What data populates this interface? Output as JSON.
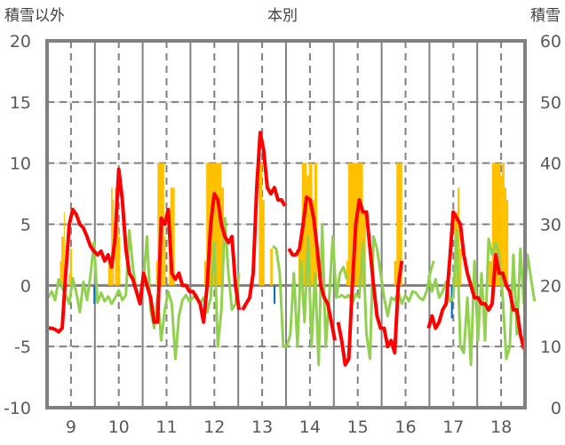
{
  "chart_data": {
    "type": "line",
    "title": "本別",
    "ylabel_left": "積雪以外",
    "ylabel_right": "積雪",
    "xlim": [
      8.5,
      18.5
    ],
    "ylim_left": [
      -10,
      20
    ],
    "ylim_right": [
      0,
      60
    ],
    "x_ticks": [
      9,
      10,
      11,
      12,
      13,
      14,
      15,
      16,
      17,
      18
    ],
    "x_tick_labels": [
      "9",
      "10",
      "11",
      "12",
      "13",
      "14",
      "15",
      "16",
      "17",
      "18"
    ],
    "left_ticks": [
      20,
      15,
      10,
      5,
      0,
      -5,
      -10
    ],
    "left_tick_labels": [
      "20",
      "15",
      "10",
      "5",
      "0",
      "-5",
      "-10"
    ],
    "right_ticks": [
      60,
      50,
      40,
      30,
      20,
      10,
      0
    ],
    "right_tick_labels": [
      "60",
      "50",
      "40",
      "30",
      "20",
      "10",
      "0"
    ],
    "grid": true,
    "legend": "none",
    "colors": {
      "red": "#ff0000",
      "green": "#92d050",
      "snow": "#ffc000",
      "blue": "#0070c0",
      "purple": "#7030a0",
      "axis": "#808080"
    },
    "series": [
      {
        "name": "red-line",
        "axis": "left",
        "color": "#ff0000",
        "segments": [
          {
            "start": 8.52,
            "step": 0.074,
            "values": [
              -3.5,
              -3.5,
              -3.6,
              -3.8,
              -3.5,
              1,
              5,
              6.2,
              5.8,
              5,
              4.7,
              4,
              3.2,
              2.8,
              2.5,
              2.8,
              2,
              2.5,
              1.5,
              4,
              9.5,
              7,
              3,
              1,
              0.5,
              -0.5,
              -1.5,
              1,
              0,
              -1,
              -3,
              -3,
              5.5,
              5,
              6.2,
              1,
              0.5,
              1,
              0,
              0,
              -0.5,
              -0.5,
              -1,
              -1.5,
              -3,
              0,
              5,
              7.5,
              7,
              5,
              4,
              3.5,
              4,
              0,
              -2
            ]
          },
          {
            "start": 12.59,
            "step": 0.074,
            "values": [
              -2,
              -1.5,
              -1,
              1,
              8,
              12.5,
              11,
              8,
              7.5,
              8,
              7,
              7,
              6.5
            ]
          },
          {
            "start": 13.56,
            "step": 0.074,
            "values": [
              3,
              2.5,
              2.5,
              3,
              5,
              7.2,
              7,
              5.5,
              3,
              0,
              -1,
              -1.5,
              -3,
              -4.5
            ]
          },
          {
            "start": 14.59,
            "step": 0.074,
            "values": [
              -3,
              -4.5,
              -6.5,
              -6,
              0,
              5,
              7,
              6,
              6,
              3,
              0,
              -2.5,
              -3.5,
              -3.5,
              -5,
              -4.5,
              -5.5,
              0,
              2
            ]
          },
          {
            "start": 16.48,
            "step": 0.074,
            "values": [
              -3.5,
              -2.5,
              -3.5,
              -3,
              -2,
              -1.5,
              2,
              6,
              5.5,
              5,
              2.5,
              1,
              0,
              -1,
              -1,
              -1.5,
              -1.5,
              -2,
              -1.5,
              2.5,
              1,
              1,
              0,
              -0.5,
              -2,
              -2,
              -4,
              -5.2
            ]
          }
        ]
      },
      {
        "name": "green-line",
        "axis": "left",
        "color": "#92d050",
        "segments": [
          {
            "start": 8.52,
            "step": 0.074,
            "values": [
              -1,
              -0.5,
              -1.2,
              0.5,
              -0.2,
              -0.8,
              -1.5,
              0.6,
              -0.6,
              -2.2,
              0.3,
              -1.2,
              0.8,
              3.5,
              -1.4,
              -0.6,
              -1.3,
              -0.9,
              -1.5,
              -1,
              -0.4,
              -1.2,
              -0.8,
              4.5,
              1.5,
              -0.5,
              -1.2,
              0.5,
              4,
              -2,
              -3.5,
              -0.8,
              -4.5,
              -2,
              -0.5,
              -1.5,
              -6,
              -2.5,
              -1.2,
              -0.8,
              -1.3,
              -1,
              -0.8,
              -1.5,
              -1,
              -2.2,
              -1,
              3.5,
              -5,
              -2,
              5.5,
              1,
              -2,
              -1.5,
              1
            ]
          },
          {
            "start": 13.22,
            "step": 0.074,
            "values": [
              3.2,
              3,
              1,
              -5,
              -5,
              -4,
              1,
              -5,
              2,
              -3,
              4,
              -5,
              1,
              -6.5,
              5,
              -5,
              -1,
              4,
              -1,
              1,
              1.5,
              0.5
            ]
          },
          {
            "start": 14.59,
            "step": 0.074,
            "values": [
              -1,
              -0.8,
              -1,
              -0.8,
              -1.5,
              -0.7,
              -1,
              3.5,
              -4,
              -6,
              4,
              3,
              1,
              -1,
              -2.5,
              -1,
              -1.2,
              -0.5,
              -1.5,
              -0.8,
              -1.3,
              -0.5,
              -0.6,
              -1,
              -1.2,
              -0.5,
              1,
              2
            ]
          },
          {
            "start": 16.48,
            "step": 0.074,
            "values": [
              0.8,
              -0.5,
              0.5,
              -1,
              -0.5,
              0.3,
              -1.3,
              -1,
              4.5,
              -5,
              -5.5,
              -1,
              -6.5,
              2,
              -4.5,
              1,
              -4.5,
              3.8,
              2.5,
              3.5,
              2.5,
              -1,
              -6,
              -5,
              2.5,
              -4,
              3,
              -1.5,
              2.5,
              0.5,
              -1.3
            ]
          }
        ]
      },
      {
        "name": "purple-line",
        "axis": "left",
        "color": "#7030a0",
        "segments": [
          {
            "start": 8.5,
            "step": 7.43,
            "values": [
              -10,
              -10
            ]
          },
          {
            "start": 16.46,
            "step": 2.04,
            "values": [
              -10,
              -10
            ]
          }
        ]
      }
    ],
    "snow_bars": {
      "axis": "right",
      "color": "#ffc000",
      "bars": [
        [
          8.77,
          8.8,
          24
        ],
        [
          8.8,
          8.85,
          28
        ],
        [
          8.85,
          8.87,
          32
        ],
        [
          8.87,
          8.9,
          24
        ],
        [
          8.95,
          8.98,
          22
        ],
        [
          8.98,
          9.02,
          26
        ],
        [
          9.78,
          9.84,
          24
        ],
        [
          9.84,
          9.87,
          36
        ],
        [
          9.87,
          9.9,
          34
        ],
        [
          9.92,
          9.96,
          36
        ],
        [
          9.96,
          10.0,
          30
        ],
        [
          10.0,
          10.03,
          28
        ],
        [
          10.78,
          10.81,
          24
        ],
        [
          10.81,
          10.95,
          40
        ],
        [
          10.95,
          10.98,
          28
        ],
        [
          11.05,
          11.08,
          24
        ],
        [
          11.08,
          11.17,
          36
        ],
        [
          11.79,
          11.83,
          24
        ],
        [
          11.83,
          12.15,
          40
        ],
        [
          12.15,
          12.2,
          36
        ],
        [
          12.93,
          13.0,
          40
        ],
        [
          13.0,
          13.05,
          34
        ],
        [
          13.17,
          13.22,
          26
        ],
        [
          13.76,
          13.83,
          26
        ],
        [
          13.83,
          13.93,
          40
        ],
        [
          13.93,
          13.98,
          38
        ],
        [
          13.98,
          14.05,
          40
        ],
        [
          14.05,
          14.09,
          34
        ],
        [
          14.09,
          14.15,
          40
        ],
        [
          14.76,
          14.8,
          24
        ],
        [
          14.8,
          15.11,
          40
        ],
        [
          15.11,
          15.17,
          32
        ],
        [
          15.76,
          15.81,
          24
        ],
        [
          15.81,
          15.93,
          40
        ],
        [
          17.02,
          17.09,
          32
        ],
        [
          17.09,
          17.13,
          36
        ],
        [
          17.13,
          17.17,
          26
        ],
        [
          17.74,
          17.81,
          24
        ],
        [
          17.81,
          17.99,
          40
        ],
        [
          17.99,
          18.02,
          38
        ],
        [
          18.02,
          18.07,
          40
        ],
        [
          18.07,
          18.11,
          36
        ],
        [
          18.11,
          18.15,
          34
        ]
      ]
    },
    "blue_bars": {
      "axis": "left",
      "color": "#0070c0",
      "bars": [
        [
          9.47,
          9.5,
          -1.5
        ],
        [
          13.24,
          13.27,
          -1.5
        ],
        [
          16.95,
          16.99,
          -2.7
        ]
      ]
    }
  }
}
